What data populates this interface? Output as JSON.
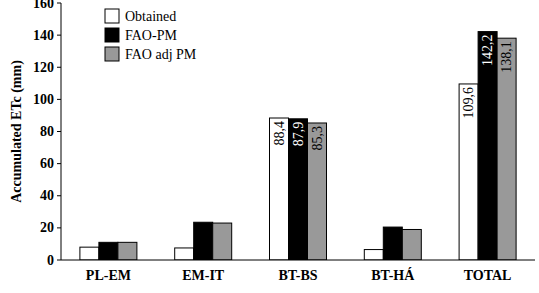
{
  "chart_data": {
    "type": "bar",
    "y_label": "Accumulated ETc (mm)",
    "categories": [
      "PL-EM",
      "EM-IT",
      "BT-BS",
      "BT-HÁ",
      "TOTAL"
    ],
    "series": [
      {
        "name": "Obtained",
        "color": "#ffffff",
        "values": [
          8,
          7.5,
          88.4,
          6.5,
          109.6
        ],
        "value_labels": [
          null,
          null,
          "88,4",
          null,
          "109,6"
        ]
      },
      {
        "name": "FAO-PM",
        "color": "#000000",
        "values": [
          11,
          23.5,
          87.9,
          20.5,
          142.2
        ],
        "value_labels": [
          null,
          null,
          "87,9",
          null,
          "142,2"
        ]
      },
      {
        "name": "FAO adj PM",
        "color": "#999999",
        "values": [
          11,
          23,
          85.3,
          19,
          138.1
        ],
        "value_labels": [
          null,
          null,
          "85,3",
          null,
          "138,1"
        ]
      }
    ],
    "ylim": [
      0,
      160
    ],
    "yticks": [
      0,
      20,
      40,
      60,
      80,
      100,
      120,
      140,
      160
    ],
    "grid": false,
    "legend": "upper left",
    "data_labels": true
  }
}
